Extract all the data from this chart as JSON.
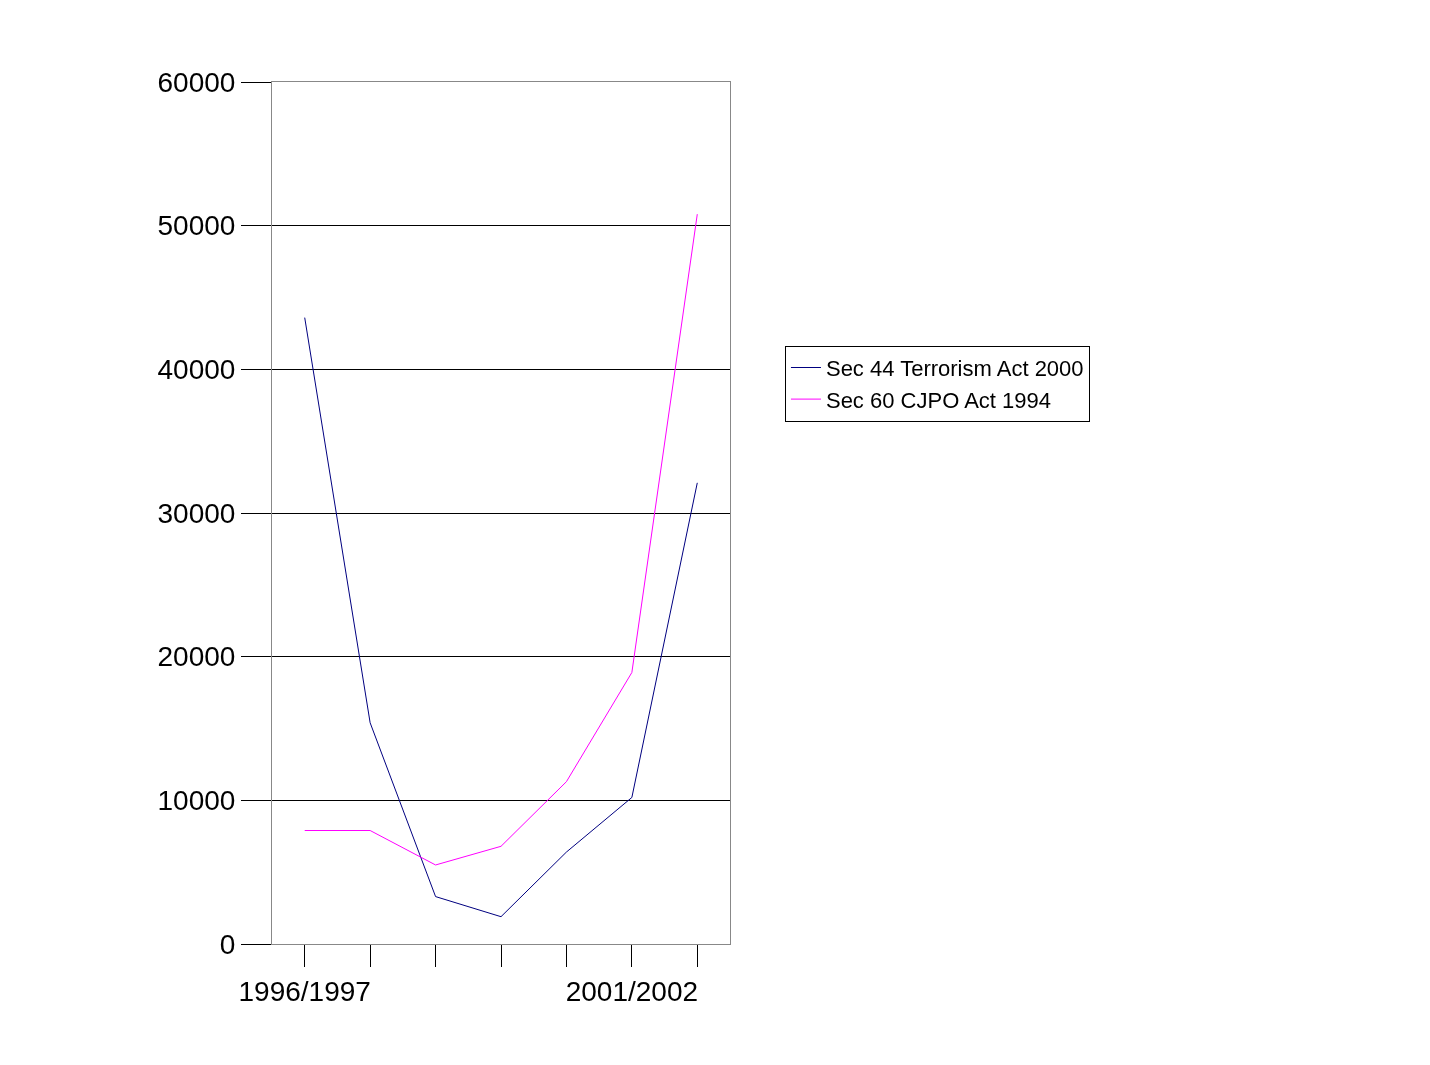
{
  "chart_data": {
    "type": "line",
    "categories": [
      "1996/1997",
      null,
      null,
      null,
      null,
      "2001/2002",
      null
    ],
    "series": [
      {
        "name": "Sec 44 Terrorism Act 2000",
        "color": "#000080",
        "values": [
          43600,
          15400,
          3300,
          1900,
          6400,
          10200,
          32100
        ]
      },
      {
        "name": "Sec 60 CJPO Act 1994",
        "color": "#ff00ff",
        "values": [
          7900,
          7900,
          5500,
          6800,
          11300,
          18900,
          50800
        ]
      }
    ],
    "ylim": [
      0,
      60000
    ],
    "yticks": [
      0,
      10000,
      20000,
      30000,
      40000,
      50000,
      60000
    ],
    "grid": "y",
    "legend": "right",
    "marker": "none",
    "line_style": "solid"
  }
}
